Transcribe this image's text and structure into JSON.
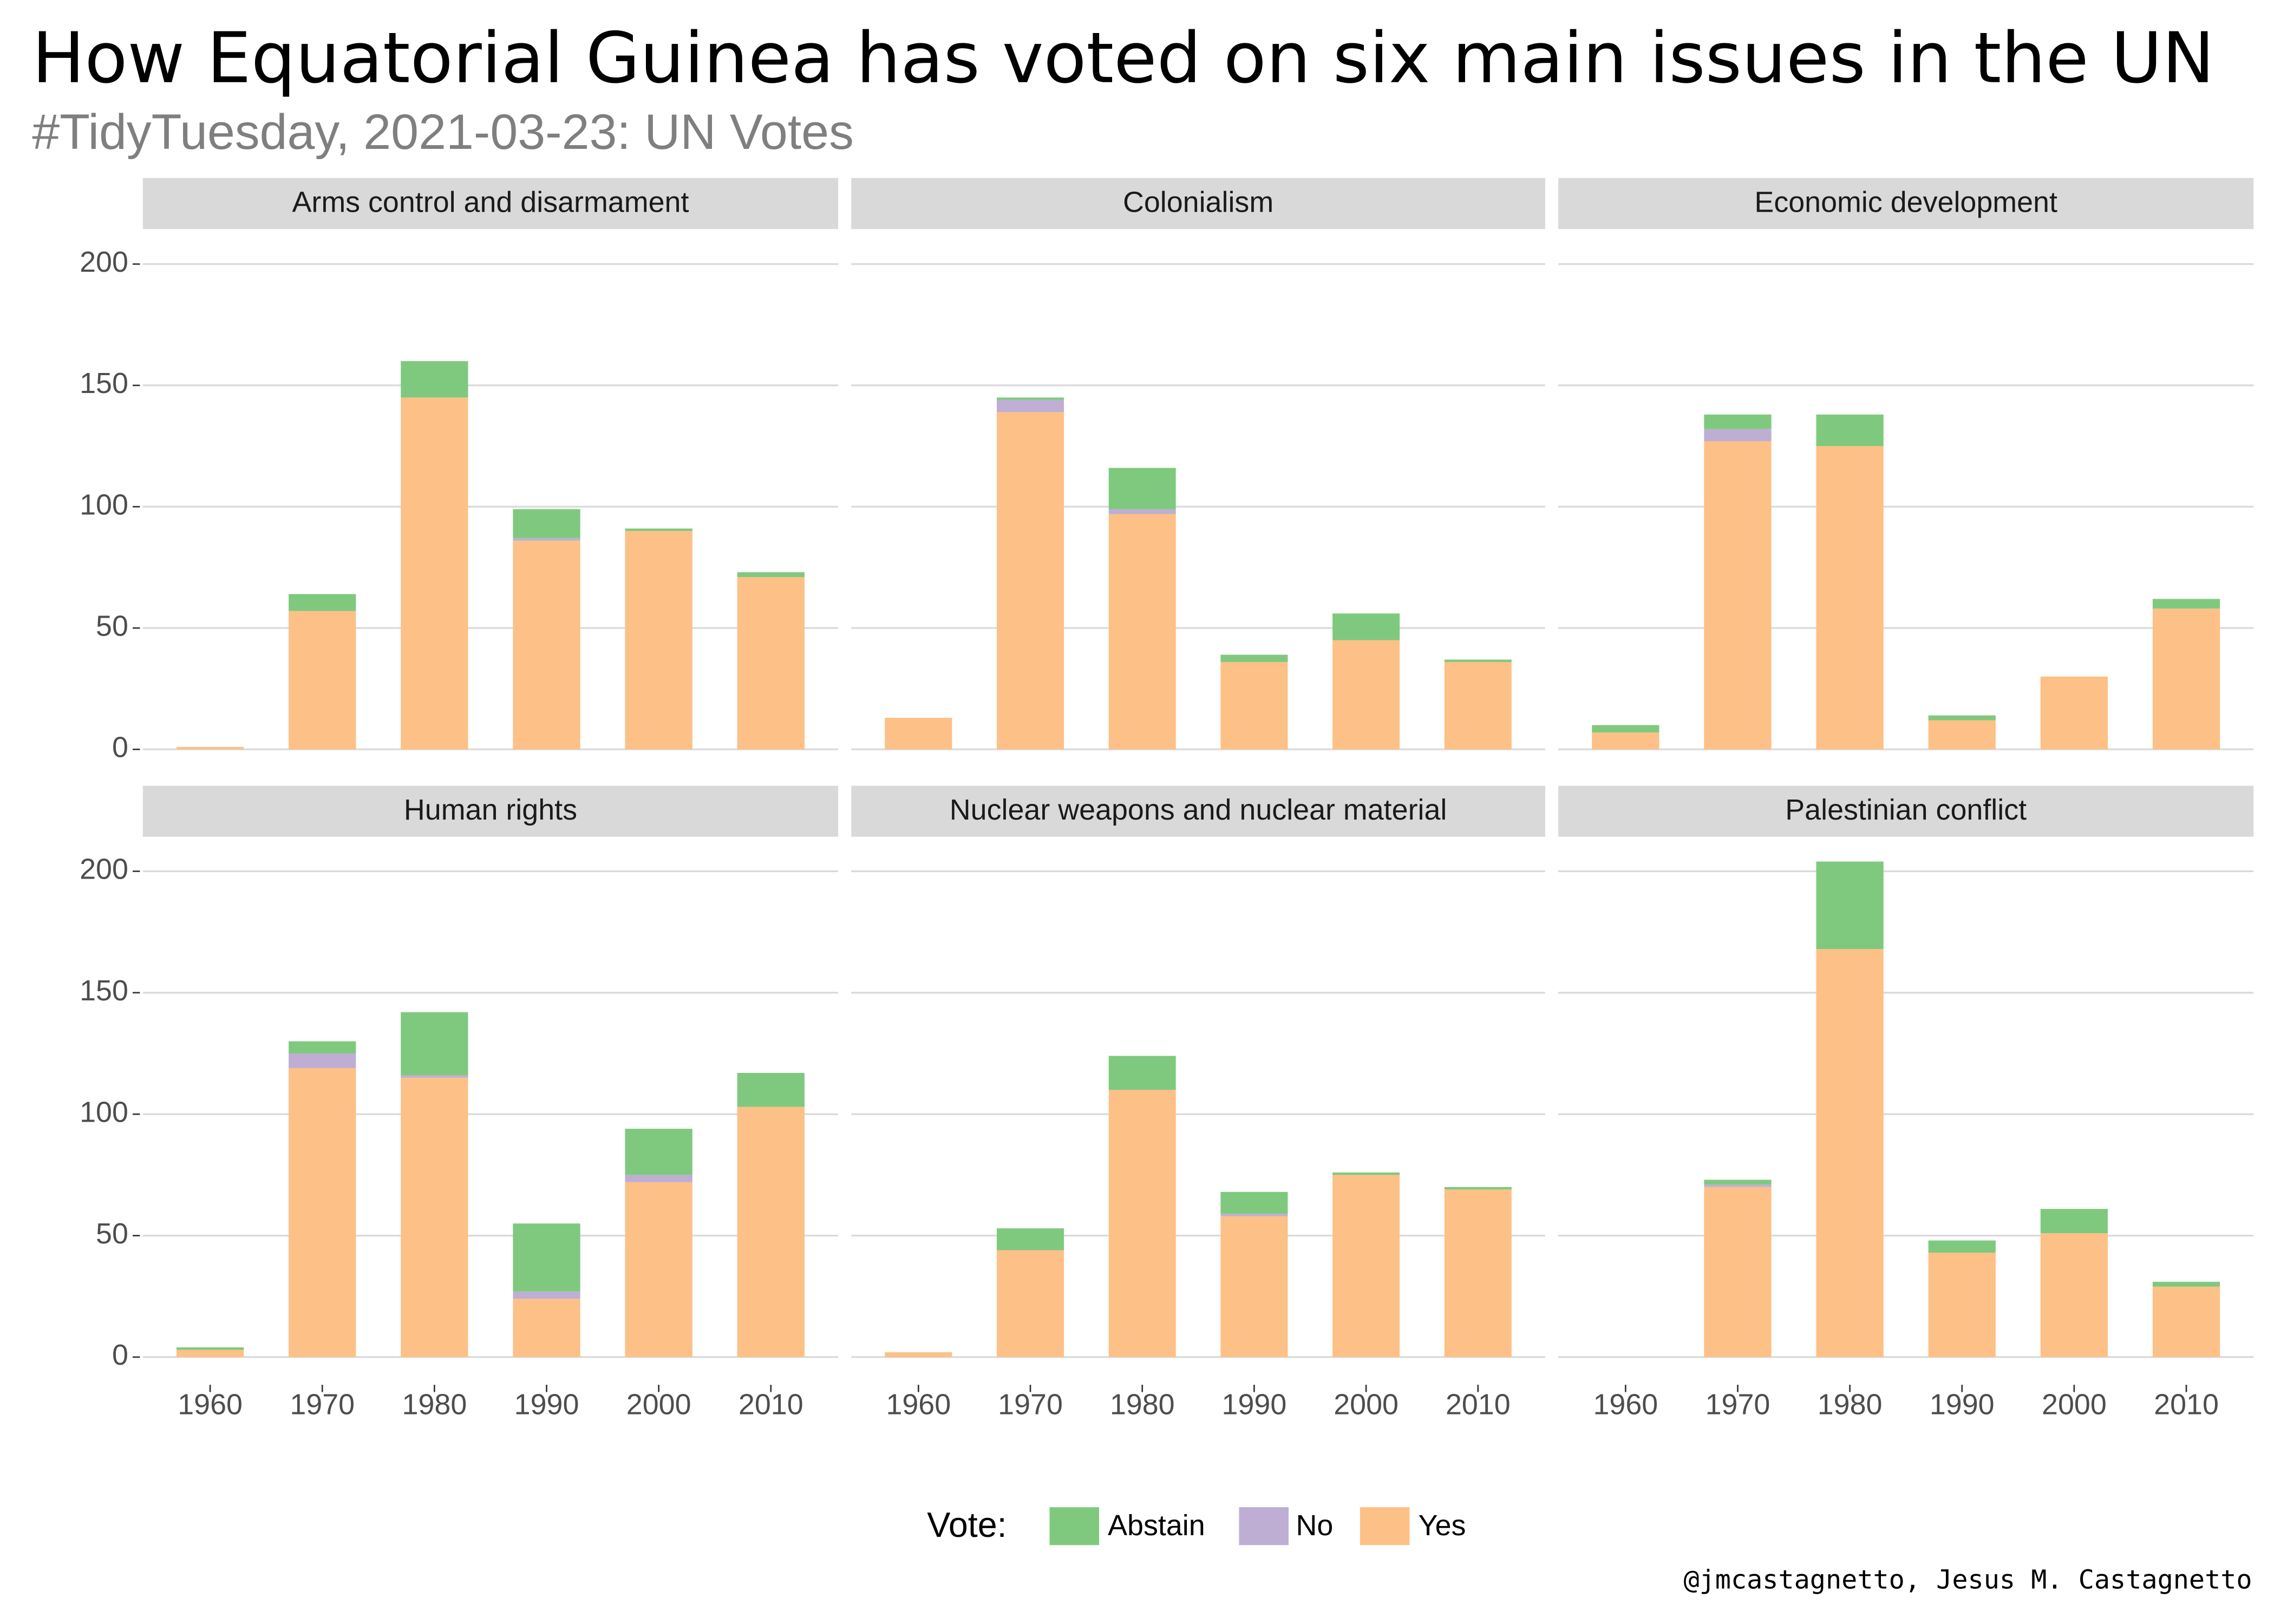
{
  "title": "How Equatorial Guinea has voted on six main issues in the UN",
  "subtitle": "#TidyTuesday, 2021-03-23: UN Votes",
  "legend_title": "Vote:",
  "caption": "@jmcastagnetto, Jesus M. Castagnetto",
  "chart_data": [
    {
      "type": "bar",
      "stacked": true,
      "title": "Arms control and disarmament",
      "categories": [
        "1960",
        "1970",
        "1980",
        "1990",
        "2000",
        "2010"
      ],
      "series": [
        {
          "name": "Abstain",
          "color": "#7fc97f",
          "values": [
            0,
            7,
            15,
            12,
            1,
            2
          ]
        },
        {
          "name": "No",
          "color": "#beaed4",
          "values": [
            0,
            0,
            0,
            1,
            0,
            0
          ]
        },
        {
          "name": "Yes",
          "color": "#fdc086",
          "values": [
            1,
            57,
            145,
            86,
            90,
            71
          ]
        }
      ],
      "ylim": [
        -10.2,
        214.2
      ],
      "yticks": [
        0,
        50,
        100,
        150,
        200
      ],
      "grid": true
    },
    {
      "type": "bar",
      "stacked": true,
      "title": "Colonialism",
      "categories": [
        "1960",
        "1970",
        "1980",
        "1990",
        "2000",
        "2010"
      ],
      "series": [
        {
          "name": "Abstain",
          "color": "#7fc97f",
          "values": [
            0,
            1,
            17,
            3,
            11,
            1
          ]
        },
        {
          "name": "No",
          "color": "#beaed4",
          "values": [
            0,
            5,
            2,
            0,
            0,
            0
          ]
        },
        {
          "name": "Yes",
          "color": "#fdc086",
          "values": [
            13,
            139,
            97,
            36,
            45,
            36
          ]
        }
      ],
      "ylim": [
        -10.2,
        214.2
      ],
      "yticks": [
        0,
        50,
        100,
        150,
        200
      ],
      "grid": true
    },
    {
      "type": "bar",
      "stacked": true,
      "title": "Economic development",
      "categories": [
        "1960",
        "1970",
        "1980",
        "1990",
        "2000",
        "2010"
      ],
      "series": [
        {
          "name": "Abstain",
          "color": "#7fc97f",
          "values": [
            3,
            6,
            13,
            2,
            0,
            4
          ]
        },
        {
          "name": "No",
          "color": "#beaed4",
          "values": [
            0,
            5,
            0,
            0,
            0,
            0
          ]
        },
        {
          "name": "Yes",
          "color": "#fdc086",
          "values": [
            7,
            127,
            125,
            12,
            30,
            58
          ]
        }
      ],
      "ylim": [
        -10.2,
        214.2
      ],
      "yticks": [
        0,
        50,
        100,
        150,
        200
      ],
      "grid": true
    },
    {
      "type": "bar",
      "stacked": true,
      "title": "Human rights",
      "categories": [
        "1960",
        "1970",
        "1980",
        "1990",
        "2000",
        "2010"
      ],
      "series": [
        {
          "name": "Abstain",
          "color": "#7fc97f",
          "values": [
            1,
            5,
            26,
            28,
            19,
            14
          ]
        },
        {
          "name": "No",
          "color": "#beaed4",
          "values": [
            0,
            6,
            1,
            3,
            3,
            0
          ]
        },
        {
          "name": "Yes",
          "color": "#fdc086",
          "values": [
            3,
            119,
            115,
            24,
            72,
            103
          ]
        }
      ],
      "ylim": [
        -10.2,
        214.2
      ],
      "yticks": [
        0,
        50,
        100,
        150,
        200
      ],
      "grid": true
    },
    {
      "type": "bar",
      "stacked": true,
      "title": "Nuclear weapons and nuclear material",
      "categories": [
        "1960",
        "1970",
        "1980",
        "1990",
        "2000",
        "2010"
      ],
      "series": [
        {
          "name": "Abstain",
          "color": "#7fc97f",
          "values": [
            0,
            9,
            14,
            9,
            1,
            1
          ]
        },
        {
          "name": "No",
          "color": "#beaed4",
          "values": [
            0,
            0,
            0,
            1,
            0,
            0
          ]
        },
        {
          "name": "Yes",
          "color": "#fdc086",
          "values": [
            2,
            44,
            110,
            58,
            75,
            69
          ]
        }
      ],
      "ylim": [
        -10.2,
        214.2
      ],
      "yticks": [
        0,
        50,
        100,
        150,
        200
      ],
      "grid": true
    },
    {
      "type": "bar",
      "stacked": true,
      "title": "Palestinian conflict",
      "categories": [
        "1960",
        "1970",
        "1980",
        "1990",
        "2000",
        "2010"
      ],
      "series": [
        {
          "name": "Abstain",
          "color": "#7fc97f",
          "values": [
            0,
            2,
            36,
            5,
            10,
            2
          ]
        },
        {
          "name": "No",
          "color": "#beaed4",
          "values": [
            0,
            1,
            0,
            0,
            0,
            0
          ]
        },
        {
          "name": "Yes",
          "color": "#fdc086",
          "values": [
            0,
            70,
            168,
            43,
            51,
            29
          ]
        }
      ],
      "ylim": [
        -10.2,
        214.2
      ],
      "yticks": [
        0,
        50,
        100,
        150,
        200
      ],
      "grid": true
    }
  ]
}
